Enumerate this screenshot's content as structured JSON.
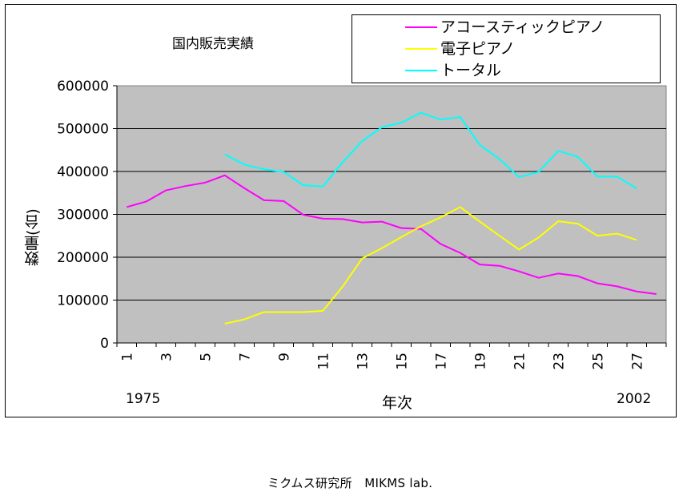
{
  "footer": "ミクムス研究所　MIKMS lab.",
  "chart_data": {
    "type": "line",
    "title": "国内販売実績",
    "ylabel": "数量(台)",
    "xlabel": "年次",
    "year_start": "1975",
    "year_end": "2002",
    "ylim": [
      0,
      600000
    ],
    "yticks": [
      "0",
      "100000",
      "200000",
      "300000",
      "400000",
      "500000",
      "600000"
    ],
    "x": [
      1,
      2,
      3,
      4,
      5,
      6,
      7,
      8,
      9,
      10,
      11,
      12,
      13,
      14,
      15,
      16,
      17,
      18,
      19,
      20,
      21,
      22,
      23,
      24,
      25,
      26,
      27,
      28
    ],
    "xtick_labels": [
      "1",
      "3",
      "5",
      "7",
      "9",
      "11",
      "13",
      "15",
      "17",
      "19",
      "21",
      "23",
      "25",
      "27"
    ],
    "grid": true,
    "legend_position": "top-right",
    "series": [
      {
        "name": "アコースティックピアノ",
        "color": "#ff00ff",
        "values": [
          317000,
          330000,
          356000,
          366000,
          374000,
          391000,
          361000,
          333000,
          331000,
          299000,
          290000,
          289000,
          281000,
          283000,
          268000,
          266000,
          231000,
          210000,
          183000,
          180000,
          167000,
          152000,
          162000,
          156000,
          139000,
          132000,
          120000,
          114000
        ]
      },
      {
        "name": "電子ピアノ",
        "color": "#ffff00",
        "values": [
          null,
          null,
          null,
          null,
          null,
          45000,
          55000,
          72000,
          72000,
          72000,
          75000,
          131000,
          197000,
          221000,
          247000,
          272000,
          293000,
          317000,
          283000,
          250000,
          218000,
          246000,
          284000,
          278000,
          250000,
          255000,
          240000,
          null
        ]
      },
      {
        "name": "トータル",
        "color": "#00ffff",
        "values": [
          null,
          null,
          null,
          null,
          null,
          440000,
          416000,
          405000,
          399000,
          368000,
          365000,
          421000,
          471000,
          503000,
          514000,
          537000,
          521000,
          527000,
          462000,
          429000,
          387000,
          399000,
          448000,
          434000,
          388000,
          388000,
          360000,
          null
        ]
      }
    ]
  }
}
